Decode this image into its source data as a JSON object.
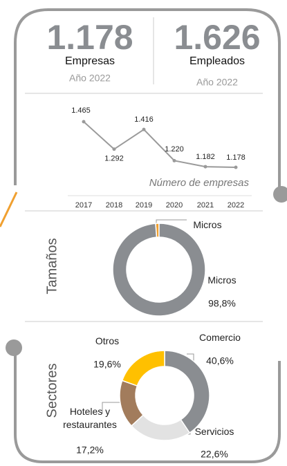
{
  "kpis": [
    {
      "value": "1.178",
      "label": "Empresas",
      "year": "Año 2022"
    },
    {
      "value": "1.626",
      "label": "Empleados",
      "year": "Año 2022"
    }
  ],
  "chart_data": [
    {
      "type": "line",
      "label": "Número de empresas",
      "categories": [
        "2017",
        "2018",
        "2019",
        "2020",
        "2021",
        "2022"
      ],
      "values": [
        1465,
        1292,
        1416,
        1220,
        1182,
        1178
      ],
      "value_labels": [
        "1.465",
        "1.292",
        "1.416",
        "1.220",
        "1.182",
        "1.178"
      ],
      "color": "#9a9a9a"
    },
    {
      "type": "donut",
      "title": "Tamaños",
      "categories": [
        "Micros",
        "Micros"
      ],
      "values": [
        1.2,
        98.8
      ],
      "value_labels": [
        null,
        "98,8%"
      ],
      "colors": [
        "#f0a030",
        "#8a8d91"
      ]
    },
    {
      "type": "donut",
      "title": "Sectores",
      "categories": [
        "Comercio",
        "Servicios",
        "Hoteles y restaurantes",
        "Otros"
      ],
      "values": [
        40.6,
        22.6,
        17.2,
        19.6
      ],
      "value_labels": [
        "40,6%",
        "22,6%",
        "17,2%",
        "19,6%"
      ],
      "colors": [
        "#8a8d91",
        "#e2e2e2",
        "#a27c5c",
        "#ffc000"
      ]
    }
  ]
}
